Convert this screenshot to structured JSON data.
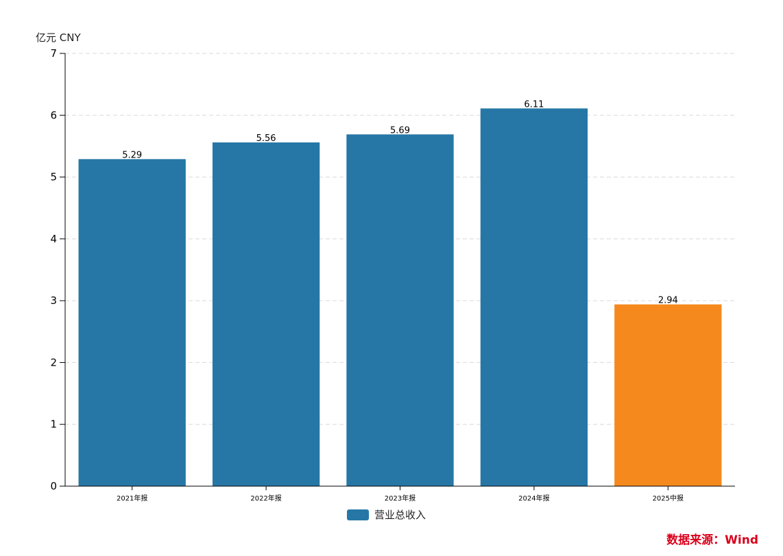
{
  "chart_data": {
    "type": "bar",
    "ylabel": "亿元  CNY",
    "categories": [
      "2021年报",
      "2022年报",
      "2023年报",
      "2024年报",
      "2025中报"
    ],
    "values": [
      5.29,
      5.56,
      5.69,
      6.11,
      2.94
    ],
    "value_labels": [
      "5.29",
      "5.56",
      "5.69",
      "6.11",
      "2.94"
    ],
    "bar_colors": [
      "#2677a6",
      "#2677a6",
      "#2677a6",
      "#2677a6",
      "#f5891d"
    ],
    "ylim": [
      0,
      7
    ],
    "yticks": [
      0,
      1,
      2,
      3,
      4,
      5,
      6,
      7
    ],
    "grid": "horizontal-dashed",
    "legend": {
      "position": "bottom-center",
      "entries": [
        {
          "name": "营业总收入",
          "color": "#2677a6"
        }
      ]
    }
  },
  "source": "数据来源：Wind"
}
